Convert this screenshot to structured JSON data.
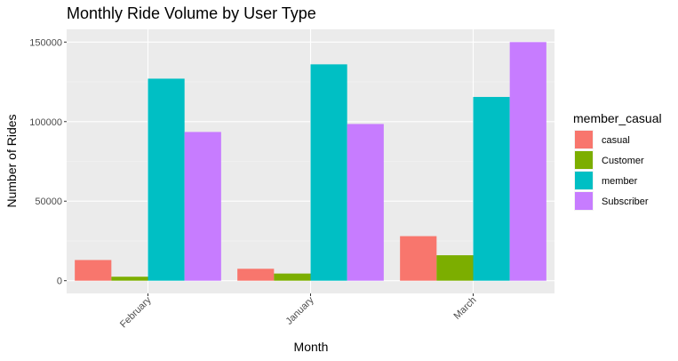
{
  "chart_data": {
    "type": "bar",
    "title": "Monthly Ride Volume by User Type",
    "xlabel": "Month",
    "ylabel": "Number of Rides",
    "categories": [
      "February",
      "January",
      "March"
    ],
    "ylim": [
      -8000,
      158000
    ],
    "yticks": [
      0,
      50000,
      100000,
      150000
    ],
    "ytick_labels": [
      "0",
      "50000",
      "100000",
      "150000"
    ],
    "grid": true,
    "legend": {
      "title": "member_casual",
      "placement": "right"
    },
    "series": [
      {
        "name": "casual",
        "color": "#F8766D",
        "values": [
          13000,
          7500,
          28000
        ]
      },
      {
        "name": "Customer",
        "color": "#7CAE00",
        "values": [
          2500,
          4500,
          16000
        ]
      },
      {
        "name": "member",
        "color": "#00BFC4",
        "values": [
          127000,
          136000,
          115500
        ]
      },
      {
        "name": "Subscriber",
        "color": "#C77CFF",
        "values": [
          93500,
          98500,
          150000
        ]
      }
    ]
  }
}
